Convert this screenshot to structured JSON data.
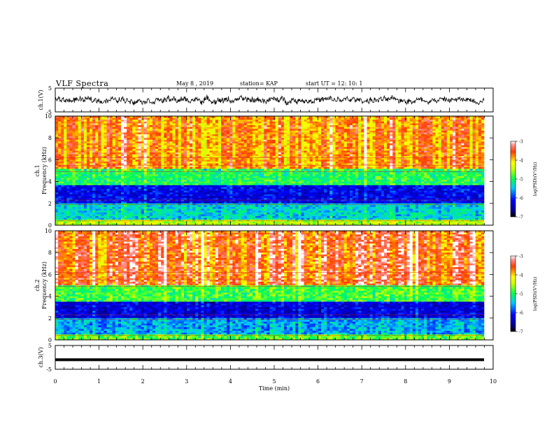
{
  "header": {
    "title": "VLF Spectra",
    "date": "May 8  , 2019",
    "station": "station= KAP",
    "start": "start  UT  =   12: 10: 1"
  },
  "chart_data": [
    {
      "type": "line",
      "panel": "ch1-waveform",
      "ylabel": "ch.1(V)",
      "ylim": [
        -5,
        5
      ],
      "yticks": [
        "5",
        "-5"
      ],
      "xlim": [
        0,
        10
      ],
      "description_values": {
        "mean": 0,
        "approx_range": [
          -2.5,
          2.5
        ]
      }
    },
    {
      "type": "heatmap",
      "panel": "ch1-spectrogram",
      "ylabel": "ch.1\nFrequency  (kHz)",
      "ylim": [
        0,
        10
      ],
      "yticks": [
        "0",
        "2",
        "4",
        "6",
        "8",
        "10"
      ],
      "xlim": [
        0,
        9.8
      ],
      "colorbar": {
        "label": "log(PSD)(V²/Hz)",
        "range": [
          -7,
          -3
        ],
        "ticks": [
          "-3",
          "-4",
          "-5",
          "-6",
          "-7"
        ]
      },
      "bands_log_psd": [
        {
          "f_range": [
            0,
            0.5
          ],
          "value": -4.5
        },
        {
          "f_range": [
            0.5,
            2.0
          ],
          "value": -5.4
        },
        {
          "f_range": [
            2.0,
            3.6
          ],
          "value": -6.2
        },
        {
          "f_range": [
            3.6,
            5.2
          ],
          "value": -5.0
        },
        {
          "f_range": [
            5.2,
            10
          ],
          "value": -3.8
        }
      ]
    },
    {
      "type": "heatmap",
      "panel": "ch2-spectrogram",
      "ylabel": "ch.2\nFrequency  (kHz)",
      "ylim": [
        0,
        10
      ],
      "yticks": [
        "0",
        "2",
        "4",
        "6",
        "8",
        "10"
      ],
      "xlim": [
        0,
        9.8
      ],
      "colorbar": {
        "label": "log(PSD)(V²/Hz)",
        "range": [
          -7,
          -3
        ],
        "ticks": [
          "-3",
          "-4",
          "-5",
          "-6",
          "-7"
        ]
      },
      "bands_log_psd": [
        {
          "f_range": [
            0,
            0.5
          ],
          "value": -4.8
        },
        {
          "f_range": [
            0.5,
            2.0
          ],
          "value": -5.6
        },
        {
          "f_range": [
            2.0,
            3.5
          ],
          "value": -6.3
        },
        {
          "f_range": [
            3.5,
            5.0
          ],
          "value": -4.9
        },
        {
          "f_range": [
            5.0,
            10
          ],
          "value": -3.6
        }
      ]
    },
    {
      "type": "line",
      "panel": "ch3-waveform",
      "ylabel": "ch.3(V)",
      "ylim": [
        -5,
        5
      ],
      "yticks": [
        "5",
        "-5"
      ],
      "xlim": [
        0,
        9.8
      ],
      "values_constant": -1
    }
  ],
  "xaxis": {
    "label": "Time  (min)",
    "ticks": [
      "0",
      "1",
      "2",
      "3",
      "4",
      "5",
      "6",
      "7",
      "8",
      "9",
      "10"
    ]
  }
}
